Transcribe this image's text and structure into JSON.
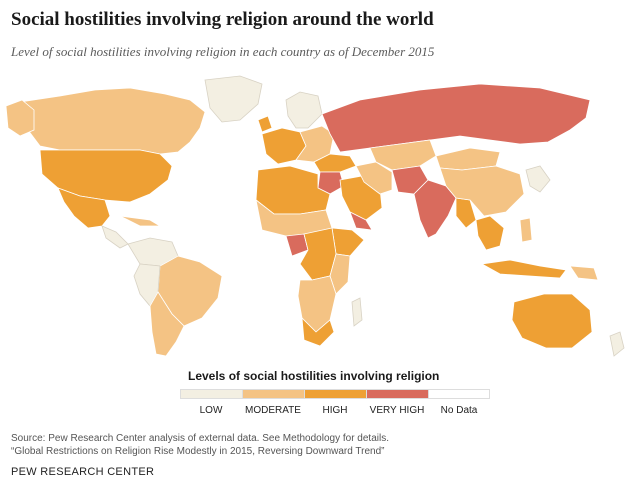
{
  "header": {
    "title": "Social hostilities involving religion around the world",
    "subtitle": "Level of social hostilities involving religion in each country as of December 2015"
  },
  "legend": {
    "title": "Levels of social hostilities involving religion",
    "items": [
      {
        "label": "LOW",
        "color": "#f3efe2"
      },
      {
        "label": "MODERATE",
        "color": "#f4c384"
      },
      {
        "label": "HIGH",
        "color": "#eea034"
      },
      {
        "label": "VERY HIGH",
        "color": "#d96b5d"
      },
      {
        "label": "No Data",
        "color": "#ffffff"
      }
    ]
  },
  "colors": {
    "border": "#ffffff",
    "map_stroke": "#d8d2c4"
  },
  "footer": {
    "source_line1": "Source: Pew Research Center analysis of external data. See Methodology for details.",
    "source_line2": "“Global Restrictions on Religion Rise Modestly in 2015, Reversing Downward Trend”",
    "brand": "PEW RESEARCH CENTER"
  }
}
